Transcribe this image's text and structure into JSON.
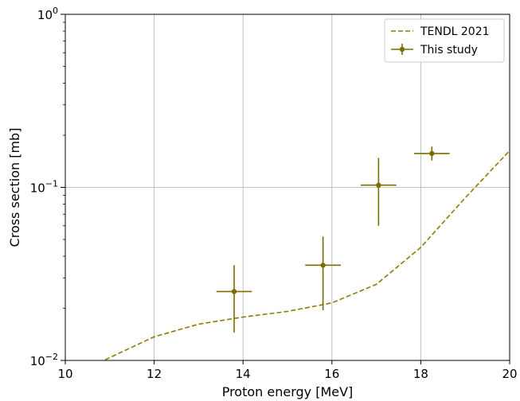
{
  "chart_data": {
    "type": "scatter",
    "xlabel": "Proton energy [MeV]",
    "ylabel": "Cross section [mb]",
    "xlim": [
      10,
      20
    ],
    "ylim": [
      0.01,
      1
    ],
    "yscale": "log",
    "grid": true,
    "legend_position": "top-right",
    "x_ticks": [
      10,
      12,
      14,
      16,
      18,
      20
    ],
    "x_tick_labels": [
      "10",
      "12",
      "14",
      "16",
      "18",
      "20"
    ],
    "y_ticks": [
      0.01,
      0.1,
      1
    ],
    "y_tick_labels": [
      {
        "base": "10",
        "exp": "−2"
      },
      {
        "base": "10",
        "exp": "−1"
      },
      {
        "base": "10",
        "exp": "0"
      }
    ],
    "series": [
      {
        "name": "TENDL 2021",
        "kind": "line",
        "style": "dashed",
        "color": "#8b7d00",
        "x": [
          10.9,
          12,
          13,
          14,
          15,
          16,
          17,
          18,
          19,
          20
        ],
        "y": [
          0.0101,
          0.0137,
          0.0162,
          0.0178,
          0.0192,
          0.0215,
          0.0275,
          0.045,
          0.087,
          0.163
        ]
      },
      {
        "name": "This study",
        "kind": "errorbar",
        "color": "#7a6d00",
        "points": [
          {
            "x": 13.8,
            "y": 0.025,
            "xerr": 0.4,
            "ylo": 0.0145,
            "yhi": 0.0355
          },
          {
            "x": 15.8,
            "y": 0.0355,
            "xerr": 0.4,
            "ylo": 0.0195,
            "yhi": 0.052
          },
          {
            "x": 17.05,
            "y": 0.103,
            "xerr": 0.4,
            "ylo": 0.06,
            "yhi": 0.148
          },
          {
            "x": 18.25,
            "y": 0.157,
            "xerr": 0.4,
            "ylo": 0.143,
            "yhi": 0.172
          }
        ]
      }
    ]
  }
}
